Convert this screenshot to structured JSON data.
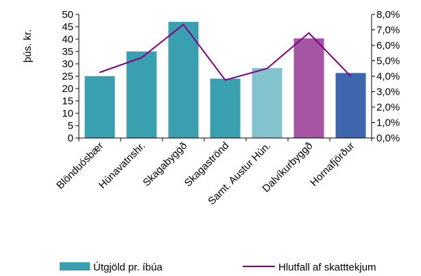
{
  "chart_data": {
    "type": "bar",
    "categories": [
      "Blönduósbær",
      "Húnavatnshr.",
      "Skagabyggð",
      "Skagaströnd",
      "Samt. Austur Hún.",
      "Dalvíkurbyggð",
      "Hornafjörður"
    ],
    "series": [
      {
        "name": "Útgjöld pr. íbúa",
        "kind": "bar",
        "axis": "left",
        "values": [
          25,
          35,
          47,
          24,
          28.3,
          40.3,
          26.3
        ],
        "colors": [
          "#3a9fae",
          "#3a9fae",
          "#3a9fae",
          "#3a9fae",
          "#82c3cd",
          "#a655a5",
          "#3e66ad"
        ]
      },
      {
        "name": "Hlutfall af skatttekjum",
        "kind": "line",
        "axis": "right",
        "values": [
          4.25,
          5.2,
          7.35,
          3.75,
          4.5,
          6.8,
          4.0
        ],
        "color": "#800080"
      }
    ],
    "ylabel": "þús. kr.",
    "ylim": [
      0,
      50
    ],
    "y_ticks": [
      "0",
      "5",
      "10",
      "15",
      "20",
      "25",
      "30",
      "35",
      "40",
      "45",
      "50"
    ],
    "y2lim": [
      0,
      8
    ],
    "y2_ticks": [
      "0,0%",
      "1,0%",
      "2,0%",
      "3,0%",
      "4,0%",
      "5,0%",
      "6,0%",
      "7,0%",
      "8,0%"
    ],
    "grid": false,
    "legend": "bottom"
  }
}
